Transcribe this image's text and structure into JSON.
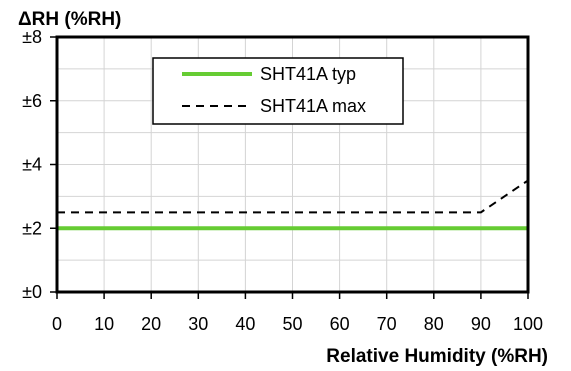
{
  "chart_data": {
    "type": "line",
    "xlabel": "Relative Humidity (%RH)",
    "ylabel": "ΔRH (%RH)",
    "xlim": [
      0,
      100
    ],
    "ylim": [
      0,
      8
    ],
    "x_ticks": [
      0,
      10,
      20,
      30,
      40,
      50,
      60,
      70,
      80,
      90,
      100
    ],
    "x_tick_labels": [
      "0",
      "10",
      "20",
      "30",
      "40",
      "50",
      "60",
      "70",
      "80",
      "90",
      "100"
    ],
    "y_ticks": [
      0,
      2,
      4,
      6,
      8
    ],
    "y_tick_labels": [
      "±0",
      "±2",
      "±4",
      "±6",
      "±8"
    ],
    "grid": true,
    "legend_position": "top-center",
    "series": [
      {
        "name": "SHT41A typ",
        "style": "solid",
        "color": "#66cc33",
        "x": [
          0,
          100
        ],
        "y": [
          2,
          2
        ]
      },
      {
        "name": "SHT41A max",
        "style": "dashed",
        "color": "#000000",
        "x": [
          0,
          90,
          100
        ],
        "y": [
          2.5,
          2.5,
          3.5
        ]
      }
    ]
  }
}
